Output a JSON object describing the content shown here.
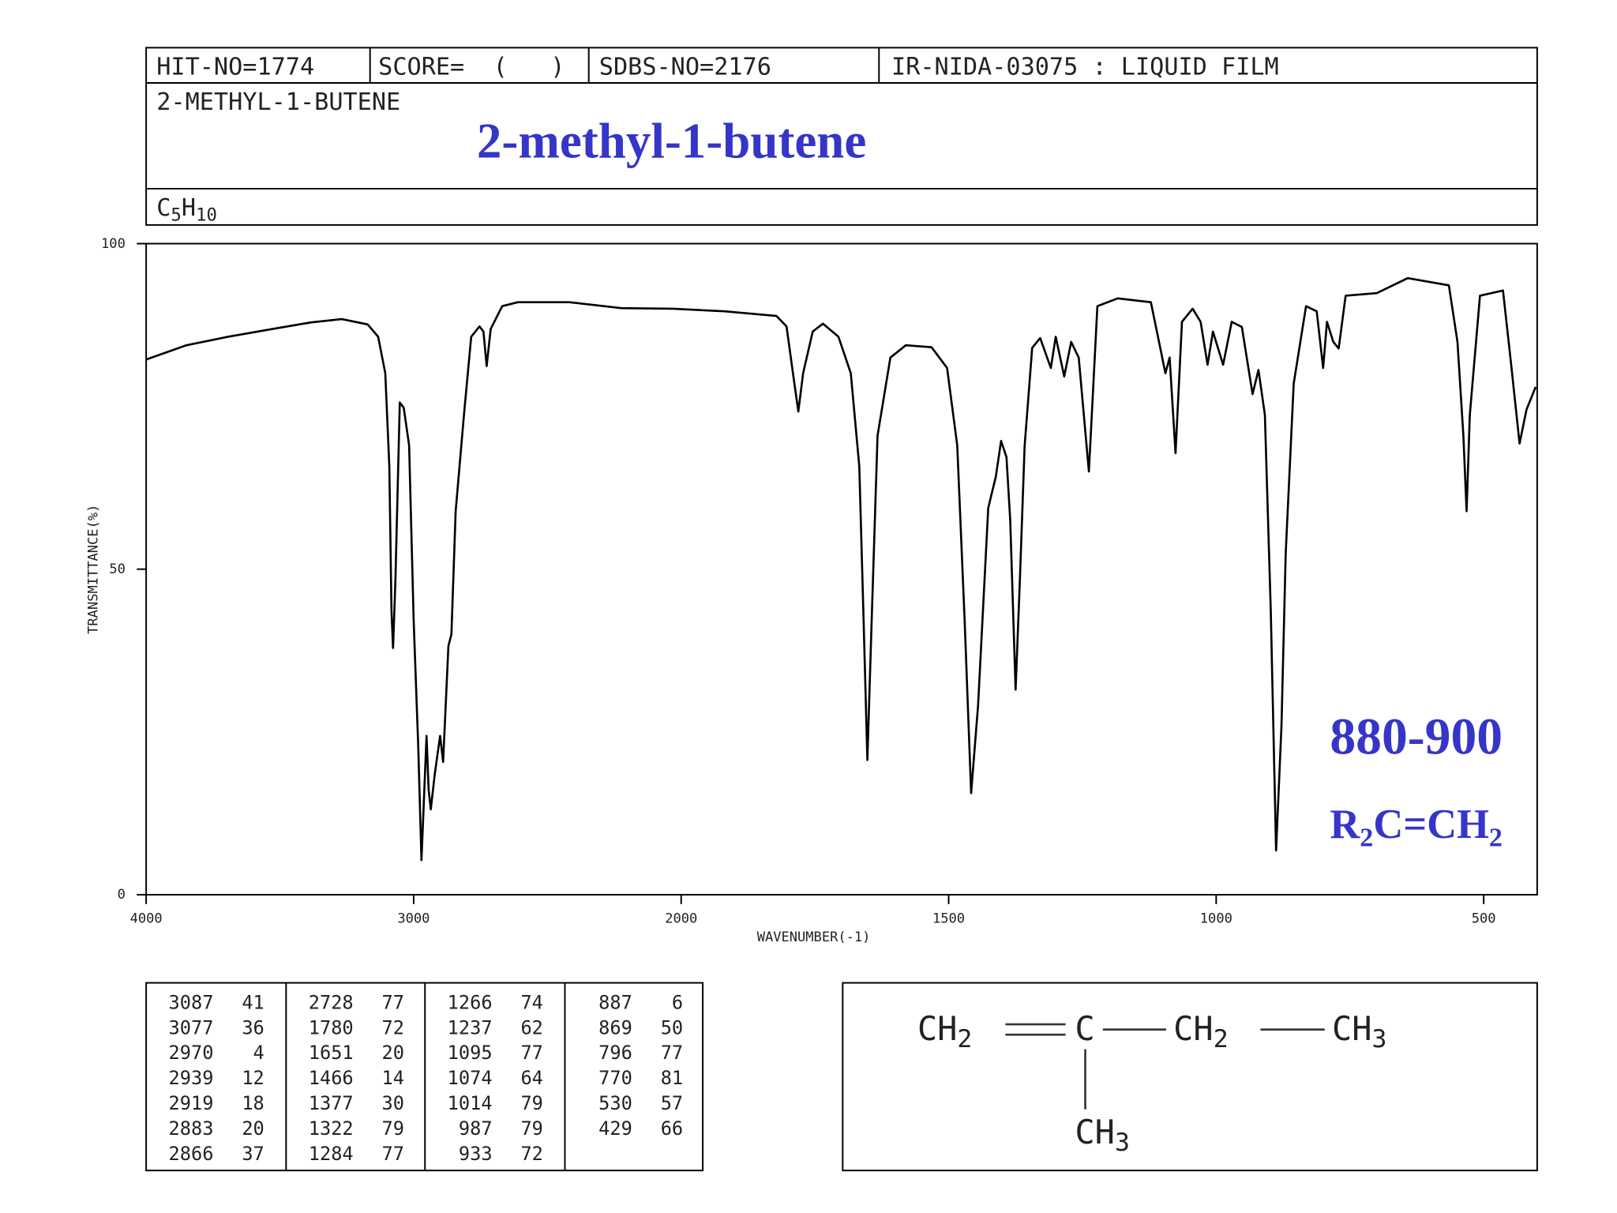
{
  "header": {
    "hit_no": "HIT-NO=1774",
    "score": "SCORE=  (   )",
    "sdbs_no": "SDBS-NO=2176",
    "method": "IR-NIDA-03075 : LIQUID FILM",
    "name": "2-METHYL-1-BUTENE",
    "formula": [
      "C",
      "5",
      "H",
      "10"
    ]
  },
  "annotations": {
    "title": "2-methyl-1-butene",
    "range": "880-900",
    "group": [
      "R",
      "2",
      "C=CH",
      "2"
    ]
  },
  "chart_data": {
    "type": "line",
    "color": "#000000",
    "x_scale": "piecewise",
    "xlabel": "WAVENUMBER(-1)",
    "ylabel": "TRANSMITTANCE(%)",
    "xlim": [
      4000,
      400
    ],
    "xticks": [
      4000,
      3000,
      2000,
      1500,
      1000,
      500
    ],
    "ylim": [
      0,
      100
    ],
    "yticks": [
      0,
      50,
      100
    ],
    "x": [
      4000,
      3849,
      3694,
      3540,
      3385,
      3269,
      3172,
      3133,
      3106,
      3091,
      3083,
      3077,
      3068,
      3052,
      3037,
      3017,
      3000,
      2983,
      2971,
      2960,
      2952,
      2944,
      2936,
      2921,
      2901,
      2890,
      2870,
      2859,
      2843,
      2812,
      2785,
      2754,
      2739,
      2727,
      2712,
      2669,
      2611,
      2418,
      2224,
      2031,
      1919,
      1822,
      1803,
      1791,
      1781,
      1772,
      1754,
      1735,
      1706,
      1683,
      1667,
      1659,
      1652,
      1644,
      1633,
      1609,
      1580,
      1532,
      1503,
      1484,
      1470,
      1458,
      1445,
      1426,
      1412,
      1402,
      1392,
      1385,
      1375,
      1367,
      1358,
      1344,
      1329,
      1309,
      1300,
      1284,
      1271,
      1257,
      1238,
      1222,
      1184,
      1122,
      1103,
      1095,
      1087,
      1076,
      1064,
      1044,
      1029,
      1016,
      1006,
      987,
      971,
      952,
      932,
      921,
      909,
      898,
      888,
      878,
      870,
      855,
      832,
      812,
      800,
      793,
      781,
      771,
      758,
      700,
      642,
      565,
      549,
      538,
      532,
      526,
      507,
      464,
      449,
      433,
      420,
      403
    ],
    "values": [
      82.2,
      84.4,
      85.7,
      86.8,
      87.9,
      88.4,
      87.6,
      85.7,
      80.1,
      65.8,
      43.5,
      37.9,
      48.4,
      75.6,
      74.8,
      69,
      42,
      22.8,
      5.3,
      16.2,
      24.4,
      16.2,
      13.1,
      18.6,
      24.4,
      20.4,
      38.2,
      40,
      58.9,
      73.7,
      85.7,
      87.3,
      86.5,
      81.2,
      86.9,
      90.4,
      91,
      91,
      90.1,
      90,
      89.6,
      88.9,
      87.3,
      80.1,
      74.2,
      80.1,
      86.5,
      87.7,
      85.7,
      80.1,
      65.8,
      41.9,
      20.7,
      41.9,
      70.5,
      82.5,
      84.4,
      84.1,
      80.9,
      69,
      41.9,
      15.6,
      29.1,
      59.4,
      64.2,
      69.7,
      67.2,
      57.6,
      31.5,
      48.2,
      68.9,
      84,
      85.5,
      80.9,
      85.7,
      79.6,
      84.9,
      82.5,
      65,
      90.4,
      91.6,
      91,
      83.4,
      80.1,
      82.5,
      67.8,
      88,
      90,
      88,
      81.4,
      86.5,
      81.4,
      88,
      87.2,
      76.9,
      80.6,
      73.7,
      43.5,
      6.8,
      25.9,
      52.5,
      78.5,
      90.4,
      89.6,
      80.9,
      88,
      84.9,
      83.9,
      92,
      92.4,
      94.7,
      93.6,
      84.9,
      70.5,
      58.9,
      73.7,
      92,
      92.8,
      81.7,
      69.3,
      74.5,
      78
    ],
    "peak_table": [
      [
        3087,
        41
      ],
      [
        3077,
        36
      ],
      [
        2970,
        4
      ],
      [
        2939,
        12
      ],
      [
        2919,
        18
      ],
      [
        2883,
        20
      ],
      [
        2866,
        37
      ],
      [
        2728,
        77
      ],
      [
        1780,
        72
      ],
      [
        1651,
        20
      ],
      [
        1466,
        14
      ],
      [
        1377,
        30
      ],
      [
        1322,
        79
      ],
      [
        1284,
        77
      ],
      [
        1266,
        74
      ],
      [
        1237,
        62
      ],
      [
        1095,
        77
      ],
      [
        1074,
        64
      ],
      [
        1014,
        79
      ],
      [
        987,
        79
      ],
      [
        933,
        72
      ],
      [
        887,
        6
      ],
      [
        869,
        50
      ],
      [
        796,
        77
      ],
      [
        770,
        81
      ],
      [
        530,
        57
      ],
      [
        429,
        66
      ]
    ]
  },
  "structure": [
    [
      "CH",
      "2"
    ],
    [
      "C"
    ],
    [
      "CH",
      "2"
    ],
    [
      "CH",
      "3"
    ],
    [
      "CH",
      "3"
    ]
  ]
}
